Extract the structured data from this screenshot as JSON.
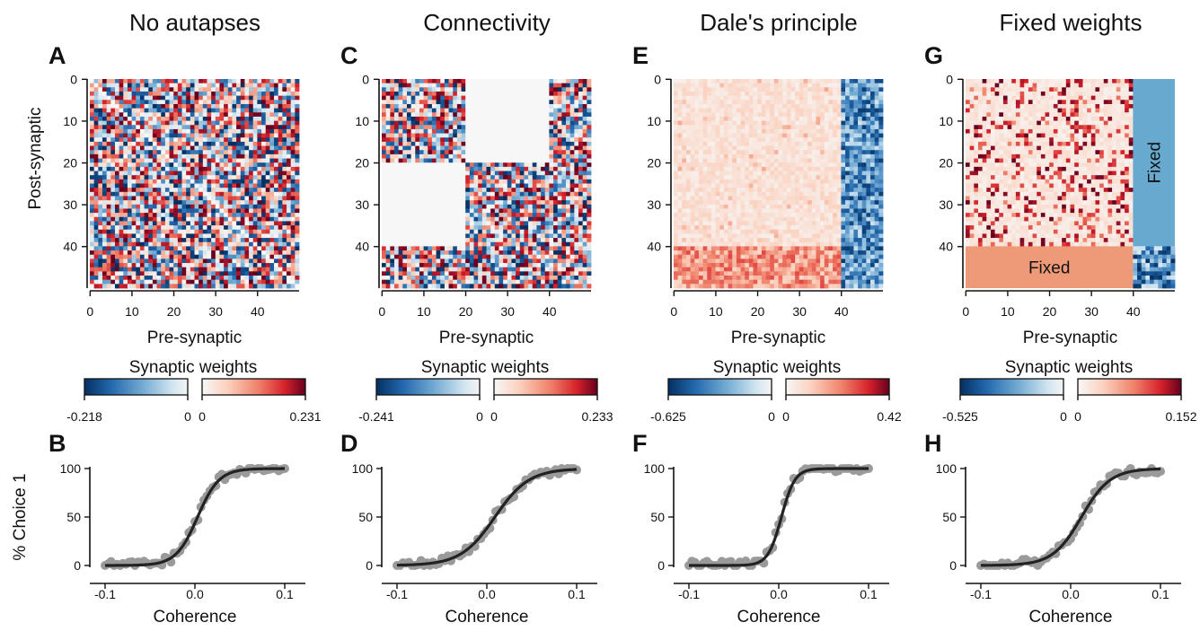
{
  "panels": [
    {
      "title": "No autapses",
      "matrix_letter": "A",
      "curve_letter": "B",
      "matrix_type": "no_autapses",
      "cb_left_min": "-0.218",
      "cb_left_max": "0",
      "cb_right_min": "0",
      "cb_right_max": "0.231"
    },
    {
      "title": "Connectivity",
      "matrix_letter": "C",
      "curve_letter": "D",
      "matrix_type": "connectivity",
      "cb_left_min": "-0.241",
      "cb_left_max": "0",
      "cb_right_min": "0",
      "cb_right_max": "0.233"
    },
    {
      "title": "Dale's principle",
      "matrix_letter": "E",
      "curve_letter": "F",
      "matrix_type": "dale",
      "cb_left_min": "-0.625",
      "cb_left_max": "0",
      "cb_right_min": "0",
      "cb_right_max": "0.42"
    },
    {
      "title": "Fixed weights",
      "matrix_letter": "G",
      "curve_letter": "H",
      "matrix_type": "fixed",
      "cb_left_min": "-0.525",
      "cb_left_max": "0",
      "cb_right_min": "0",
      "cb_right_max": "0.152",
      "fixed_labels": [
        "Fixed",
        "Fixed"
      ]
    }
  ],
  "labels": {
    "matrix_xlabel": "Pre-synaptic",
    "matrix_ylabel": "Post-synaptic",
    "colorbar_title": "Synaptic weights",
    "curve_xlabel": "Coherence",
    "curve_ylabel": "% Choice 1"
  },
  "matrix_ticks": [
    "0",
    "10",
    "20",
    "30",
    "40"
  ],
  "curve_xticks": [
    "-0.1",
    "0.0",
    "0.1"
  ],
  "curve_yticks": [
    "0",
    "50",
    "100"
  ],
  "chart_data": [
    {
      "type": "heatmap",
      "title": "No autapses",
      "xlabel": "Pre-synaptic",
      "ylabel": "Post-synaptic",
      "size": [
        50,
        50
      ],
      "xticks": [
        0,
        10,
        20,
        30,
        40
      ],
      "yticks": [
        0,
        10,
        20,
        30,
        40
      ],
      "colorbar": {
        "title": "Synaptic weights",
        "neg_range": [
          -0.218,
          0
        ],
        "pos_range": [
          0,
          0.231
        ]
      }
    },
    {
      "type": "heatmap",
      "title": "Connectivity",
      "xlabel": "Pre-synaptic",
      "size": [
        50,
        50
      ],
      "xticks": [
        0,
        10,
        20,
        30,
        40
      ],
      "yticks": [
        0,
        10,
        20,
        30,
        40
      ],
      "colorbar": {
        "title": "Synaptic weights",
        "neg_range": [
          -0.241,
          0
        ],
        "pos_range": [
          0,
          0.233
        ]
      }
    },
    {
      "type": "heatmap",
      "title": "Dale's principle",
      "xlabel": "Pre-synaptic",
      "size": [
        50,
        50
      ],
      "xticks": [
        0,
        10,
        20,
        30,
        40
      ],
      "yticks": [
        0,
        10,
        20,
        30,
        40
      ],
      "colorbar": {
        "title": "Synaptic weights",
        "neg_range": [
          -0.625,
          0
        ],
        "pos_range": [
          0,
          0.42
        ]
      }
    },
    {
      "type": "heatmap",
      "title": "Fixed weights",
      "xlabel": "Pre-synaptic",
      "size": [
        50,
        50
      ],
      "xticks": [
        0,
        10,
        20,
        30,
        40
      ],
      "yticks": [
        0,
        10,
        20,
        30,
        40
      ],
      "colorbar": {
        "title": "Synaptic weights",
        "neg_range": [
          -0.525,
          0
        ],
        "pos_range": [
          0,
          0.152
        ]
      }
    },
    {
      "type": "scatter",
      "xlabel": "Coherence",
      "ylabel": "% Choice 1",
      "xlim": [
        -0.1,
        0.1
      ],
      "ylim": [
        0,
        100
      ],
      "xticks": [
        -0.1,
        0.0,
        0.1
      ],
      "yticks": [
        0,
        50,
        100
      ],
      "fit": {
        "center": 0.003,
        "slope": 0.012
      }
    },
    {
      "type": "scatter",
      "xlabel": "Coherence",
      "xlim": [
        -0.1,
        0.1
      ],
      "ylim": [
        0,
        100
      ],
      "xticks": [
        -0.1,
        0.0,
        0.1
      ],
      "yticks": [
        0,
        50,
        100
      ],
      "fit": {
        "center": 0.009,
        "slope": 0.019
      }
    },
    {
      "type": "scatter",
      "xlabel": "Coherence",
      "xlim": [
        -0.1,
        0.1
      ],
      "ylim": [
        0,
        100
      ],
      "xticks": [
        -0.1,
        0.0,
        0.1
      ],
      "yticks": [
        0,
        50,
        100
      ],
      "fit": {
        "center": 0.003,
        "slope": 0.0075
      }
    },
    {
      "type": "scatter",
      "xlabel": "Coherence",
      "xlim": [
        -0.1,
        0.1
      ],
      "ylim": [
        0,
        100
      ],
      "xticks": [
        -0.1,
        0.0,
        0.1
      ],
      "yticks": [
        0,
        50,
        100
      ],
      "fit": {
        "center": 0.012,
        "slope": 0.016
      }
    }
  ]
}
